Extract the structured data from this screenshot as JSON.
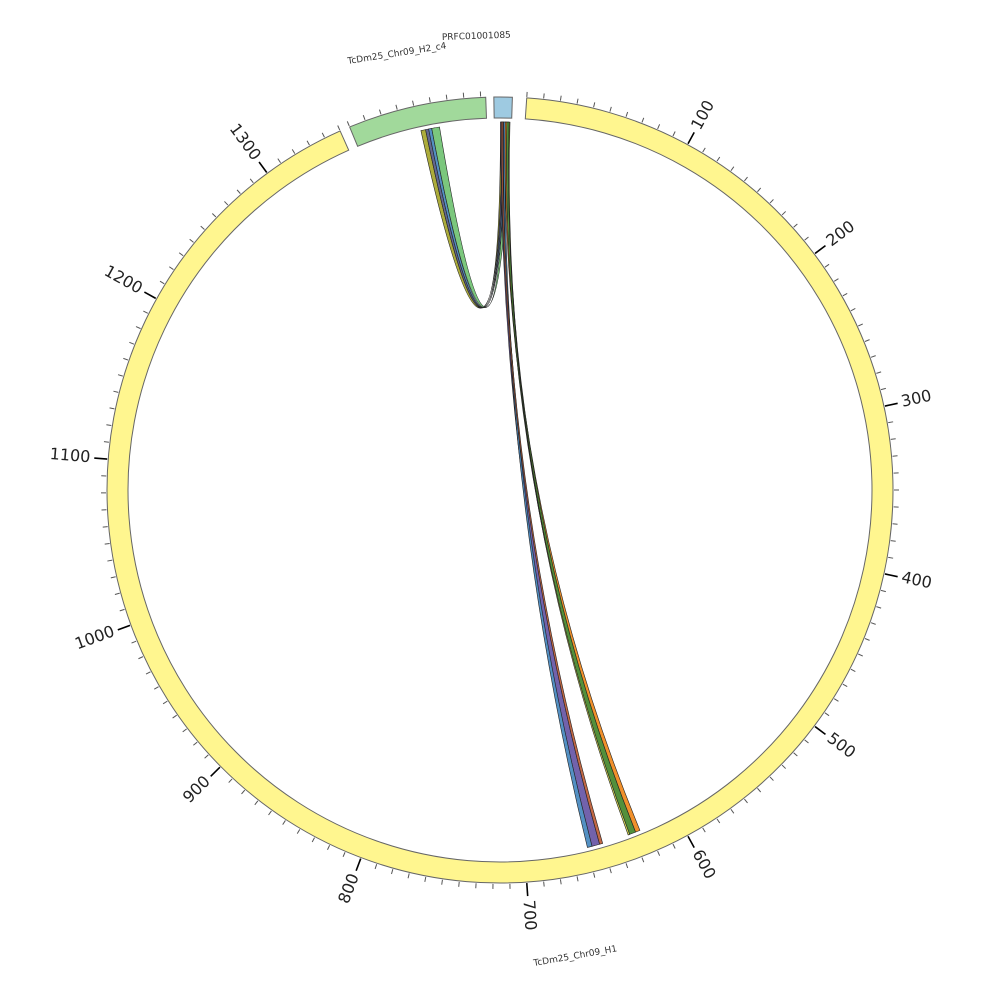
{
  "chart_data": {
    "type": "circos",
    "units_per_tick_label": 100,
    "chromosomes": [
      {
        "id": "H1",
        "name": "TcDm25_Chr09_H1",
        "length": 1350,
        "color": "#fff68f"
      },
      {
        "id": "H2",
        "name": "TcDm25_Chr09_H2_c4",
        "length": 83,
        "color": "#a1d99b"
      },
      {
        "id": "PRFC",
        "name": "PRFC01001085",
        "length": 11,
        "color": "#9ecae1"
      }
    ],
    "tick_labels": [
      "100",
      "200",
      "300",
      "400",
      "500",
      "600",
      "700",
      "800",
      "900",
      "1000",
      "1100",
      "1200",
      "1300"
    ],
    "links": [
      {
        "a": [
          "H2",
          41,
          44
        ],
        "b": [
          "PRFC",
          4,
          5
        ],
        "color": "#a8a830"
      },
      {
        "a": [
          "H2",
          44,
          46
        ],
        "b": [
          "PRFC",
          5,
          6
        ],
        "color": "#5a5f8a"
      },
      {
        "a": [
          "H2",
          46,
          48
        ],
        "b": [
          "PRFC",
          6,
          7
        ],
        "color": "#4a8ac0"
      },
      {
        "a": [
          "H2",
          48,
          53
        ],
        "b": [
          "PRFC",
          7,
          9.5
        ],
        "color": "#74c476"
      },
      {
        "a": [
          "PRFC",
          4,
          6
        ],
        "b": [
          "H1",
          652,
          657
        ],
        "color": "#6a5aa8"
      },
      {
        "a": [
          "PRFC",
          6,
          7
        ],
        "b": [
          "H1",
          657,
          660
        ],
        "color": "#4a8ac0"
      },
      {
        "a": [
          "PRFC",
          4.5,
          5.5
        ],
        "b": [
          "H1",
          650,
          652
        ],
        "color": "#c0603a"
      },
      {
        "a": [
          "PRFC",
          7,
          8
        ],
        "b": [
          "H1",
          625,
          628
        ],
        "color": "#f08a20"
      },
      {
        "a": [
          "PRFC",
          8,
          9.5
        ],
        "b": [
          "H1",
          628,
          632
        ],
        "color": "#4a8a30"
      },
      {
        "a": [
          "PRFC",
          9.5,
          10
        ],
        "b": [
          "H1",
          632,
          633
        ],
        "color": "#d9d94a"
      }
    ]
  }
}
